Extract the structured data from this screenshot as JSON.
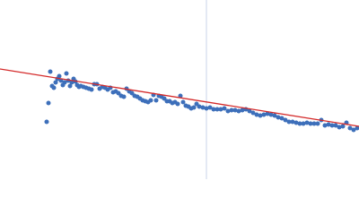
{
  "chart_data": {
    "type": "scatter",
    "xlim": [
      0,
      400
    ],
    "ylim": [
      0,
      200
    ],
    "vline": {
      "x": 230,
      "color": "#c9d3e8"
    },
    "x": [
      52,
      54,
      56,
      58,
      60,
      62,
      64,
      66,
      68,
      70,
      72,
      74,
      76,
      78,
      80,
      82,
      84,
      86,
      88,
      90,
      93,
      96,
      99,
      102,
      105,
      108,
      111,
      114,
      117,
      120,
      123,
      126,
      129,
      132,
      135,
      138,
      141,
      144,
      147,
      150,
      153,
      156,
      159,
      162,
      165,
      168,
      171,
      174,
      177,
      180,
      183,
      186,
      189,
      192,
      195,
      198,
      201,
      204,
      207,
      210,
      213,
      216,
      219,
      222,
      226,
      230,
      234,
      238,
      242,
      246,
      250,
      254,
      258,
      262,
      266,
      270,
      274,
      278,
      282,
      286,
      290,
      294,
      298,
      302,
      306,
      310,
      314,
      318,
      322,
      326,
      330,
      334,
      338,
      342,
      346,
      350,
      354,
      358,
      362,
      366,
      370,
      374,
      378,
      382,
      386,
      390,
      394,
      398
    ],
    "series": [
      {
        "color": "#3d6fba",
        "values": [
          64,
          85,
          120,
          104,
          102,
          108,
          112,
          115,
          110,
          105,
          108,
          118,
          110,
          104,
          108,
          112,
          109,
          105,
          103,
          104,
          103,
          102,
          101,
          100,
          106,
          106,
          101,
          103,
          102,
          100,
          102,
          97,
          98,
          96,
          93,
          92,
          101,
          98,
          96,
          93,
          92,
          90,
          88,
          87,
          86,
          88,
          94,
          88,
          93,
          92,
          90,
          87,
          87,
          85,
          86,
          84,
          93,
          86,
          82,
          81,
          79,
          80,
          84,
          81,
          80,
          79,
          80,
          78,
          78,
          78,
          79,
          76,
          77,
          77,
          76,
          77,
          78,
          76,
          74,
          72,
          71,
          72,
          73,
          72,
          71,
          69,
          68,
          66,
          64,
          64,
          63,
          62,
          62,
          63,
          62,
          62,
          62,
          66,
          60,
          61,
          60,
          60,
          58,
          59,
          63,
          57,
          55,
          57
        ]
      }
    ],
    "fit": {
      "color": "#d42a2a",
      "x": [
        0,
        400
      ],
      "y": [
        123,
        59
      ]
    }
  }
}
